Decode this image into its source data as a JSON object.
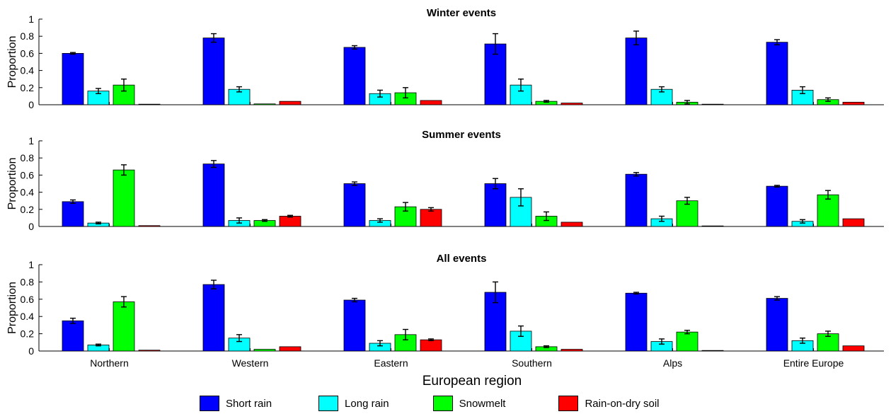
{
  "chart_data": {
    "type": "bar",
    "xlabel": "European region",
    "ylabel": "Proportion",
    "ylim": [
      0,
      1
    ],
    "yticks": [
      "0",
      "0.2",
      "0.4",
      "0.6",
      "0.8",
      "1"
    ],
    "categories": [
      "Northern",
      "Western",
      "Eastern",
      "Southern",
      "Alps",
      "Entire Europe"
    ],
    "legend_position": "bottom",
    "series_info": [
      {
        "name": "Short rain",
        "color": "#0000ff"
      },
      {
        "name": "Long rain",
        "color": "#00ffff"
      },
      {
        "name": "Snowmelt",
        "color": "#00ff00"
      },
      {
        "name": "Rain-on-dry soil",
        "color": "#ff0000"
      }
    ],
    "panels": [
      {
        "title": "Winter events",
        "series": [
          {
            "name": "Short rain",
            "values": [
              0.6,
              0.78,
              0.67,
              0.71,
              0.78,
              0.73
            ],
            "errors": [
              0.01,
              0.05,
              0.02,
              0.12,
              0.08,
              0.03
            ]
          },
          {
            "name": "Long rain",
            "values": [
              0.16,
              0.18,
              0.13,
              0.23,
              0.18,
              0.17
            ],
            "errors": [
              0.03,
              0.03,
              0.04,
              0.07,
              0.03,
              0.04
            ]
          },
          {
            "name": "Snowmelt",
            "values": [
              0.23,
              0.01,
              0.14,
              0.04,
              0.03,
              0.06
            ],
            "errors": [
              0.07,
              0.0,
              0.06,
              0.01,
              0.02,
              0.02
            ]
          },
          {
            "name": "Rain-on-dry soil",
            "values": [
              0.0,
              0.04,
              0.05,
              0.02,
              0.0,
              0.03
            ],
            "errors": [
              0.0,
              0.0,
              0.0,
              0.0,
              0.0,
              0.0
            ]
          }
        ]
      },
      {
        "title": "Summer events",
        "series": [
          {
            "name": "Short rain",
            "values": [
              0.29,
              0.73,
              0.5,
              0.5,
              0.61,
              0.47
            ],
            "errors": [
              0.02,
              0.04,
              0.02,
              0.06,
              0.02,
              0.01
            ]
          },
          {
            "name": "Long rain",
            "values": [
              0.04,
              0.07,
              0.07,
              0.34,
              0.09,
              0.06
            ],
            "errors": [
              0.01,
              0.03,
              0.02,
              0.1,
              0.03,
              0.02
            ]
          },
          {
            "name": "Snowmelt",
            "values": [
              0.66,
              0.07,
              0.23,
              0.12,
              0.3,
              0.37
            ],
            "errors": [
              0.06,
              0.01,
              0.05,
              0.05,
              0.04,
              0.05
            ]
          },
          {
            "name": "Rain-on-dry soil",
            "values": [
              0.01,
              0.12,
              0.2,
              0.05,
              0.0,
              0.09
            ],
            "errors": [
              0.0,
              0.01,
              0.02,
              0.0,
              0.0,
              0.0
            ]
          }
        ]
      },
      {
        "title": "All events",
        "series": [
          {
            "name": "Short rain",
            "values": [
              0.35,
              0.77,
              0.59,
              0.68,
              0.67,
              0.61
            ],
            "errors": [
              0.03,
              0.05,
              0.02,
              0.12,
              0.01,
              0.02
            ]
          },
          {
            "name": "Long rain",
            "values": [
              0.07,
              0.15,
              0.09,
              0.23,
              0.11,
              0.12
            ],
            "errors": [
              0.01,
              0.04,
              0.03,
              0.06,
              0.03,
              0.03
            ]
          },
          {
            "name": "Snowmelt",
            "values": [
              0.57,
              0.02,
              0.19,
              0.05,
              0.22,
              0.2
            ],
            "errors": [
              0.06,
              0.0,
              0.06,
              0.01,
              0.02,
              0.03
            ]
          },
          {
            "name": "Rain-on-dry soil",
            "values": [
              0.01,
              0.05,
              0.13,
              0.02,
              0.0,
              0.06
            ],
            "errors": [
              0.0,
              0.0,
              0.01,
              0.0,
              0.0,
              0.0
            ]
          }
        ]
      }
    ]
  }
}
